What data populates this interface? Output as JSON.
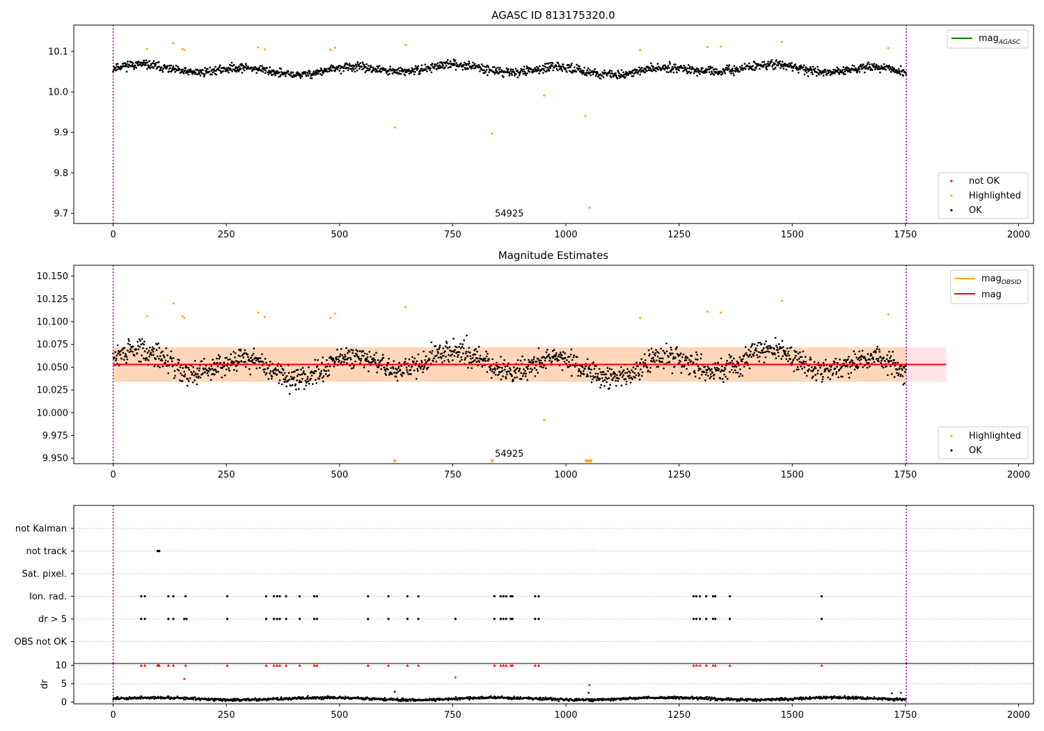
{
  "chart_data": [
    {
      "type": "scatter",
      "title": "AGASC ID 813175320.0",
      "xlim": [
        -87,
        2033
      ],
      "ylim": [
        9.675,
        10.165
      ],
      "xticks": [
        0,
        250,
        500,
        750,
        1000,
        1250,
        1500,
        1750,
        2000
      ],
      "yticks": [
        9.7,
        9.8,
        9.9,
        10.0,
        10.1
      ],
      "ytick_labels": [
        "9.7",
        "9.8",
        "9.9",
        "10.0",
        "10.1"
      ],
      "vlines": [
        0,
        1752
      ],
      "obs_label": {
        "text": "54925",
        "x": 875,
        "y": 9.675
      },
      "legend_lines": [
        {
          "name": "magAGASC",
          "main": "mag",
          "sub": "AGASC",
          "color": "#008000"
        }
      ],
      "legend_points": [
        {
          "name": "not OK",
          "color": "#ff0000"
        },
        {
          "name": "Highlighted",
          "color": "#ffa500"
        },
        {
          "name": "OK",
          "color": "#000000"
        }
      ],
      "ok_series": {
        "n": 1752,
        "base": 10.055,
        "noise": 0.017,
        "wave_amp": 0.008,
        "seed": 11
      },
      "highlighted": [
        [
          75,
          10.106
        ],
        [
          133,
          10.12
        ],
        [
          153,
          10.106
        ],
        [
          157,
          10.104
        ],
        [
          320,
          10.11
        ],
        [
          335,
          10.105
        ],
        [
          480,
          10.104
        ],
        [
          490,
          10.109
        ],
        [
          622,
          9.912
        ],
        [
          646,
          10.116
        ],
        [
          837,
          9.897
        ],
        [
          952,
          9.991
        ],
        [
          1043,
          9.94
        ],
        [
          1052,
          9.714
        ],
        [
          1164,
          10.104
        ],
        [
          1313,
          10.111
        ],
        [
          1342,
          10.112
        ],
        [
          1477,
          10.123
        ],
        [
          1712,
          10.108
        ]
      ]
    },
    {
      "type": "scatter",
      "title": "Magnitude Estimates",
      "xlim": [
        -87,
        2033
      ],
      "ylim": [
        9.944,
        10.162
      ],
      "xticks": [
        0,
        250,
        500,
        750,
        1000,
        1250,
        1500,
        1750,
        2000
      ],
      "yticks": [
        9.95,
        9.975,
        10.0,
        10.025,
        10.05,
        10.075,
        10.1,
        10.125,
        10.15
      ],
      "ytick_labels": [
        "9.950",
        "9.975",
        "10.000",
        "10.025",
        "10.050",
        "10.075",
        "10.100",
        "10.125",
        "10.150"
      ],
      "vlines": [
        0,
        1752
      ],
      "obs_label": {
        "text": "54925",
        "x": 875,
        "y": 9.944
      },
      "mean": 10.053,
      "band": {
        "x0": 0,
        "x1": 1840,
        "lo": 10.034,
        "hi": 10.072
      },
      "band_ok": {
        "x0": 0,
        "x1": 1752
      },
      "legend_lines": [
        {
          "name": "magOBSID",
          "main": "mag",
          "sub": "OBSID",
          "color": "#ffa500"
        },
        {
          "name": "mag",
          "main": "mag",
          "sub": "",
          "color": "#ff0000"
        }
      ],
      "legend_points": [
        {
          "name": "Highlighted",
          "color": "#ffa500"
        },
        {
          "name": "OK",
          "color": "#000000"
        }
      ],
      "ok_series": {
        "n": 1752,
        "base": 10.053,
        "noise": 0.021,
        "wave_amp": 0.01,
        "seed": 29
      },
      "highlighted": [
        [
          75,
          10.106
        ],
        [
          133,
          10.12
        ],
        [
          153,
          10.106
        ],
        [
          157,
          10.104
        ],
        [
          320,
          10.11
        ],
        [
          335,
          10.105
        ],
        [
          480,
          10.104
        ],
        [
          490,
          10.109
        ],
        [
          646,
          10.116
        ],
        [
          952,
          9.992
        ],
        [
          1164,
          10.104
        ],
        [
          1313,
          10.111
        ],
        [
          1342,
          10.11
        ],
        [
          1477,
          10.123
        ],
        [
          1712,
          10.108
        ]
      ],
      "off_scale_markers": [
        622,
        837,
        1045,
        1050,
        1055
      ]
    },
    {
      "type": "scatter",
      "title": "",
      "xlim": [
        -87,
        2033
      ],
      "xticks": [
        0,
        250,
        500,
        750,
        1000,
        1250,
        1500,
        1750,
        2000
      ],
      "vlines": [
        0,
        1752
      ],
      "flag_rows": [
        "not Kalman",
        "not track",
        "Sat. pixel.",
        "Ion. rad.",
        "dr > 5",
        "OBS not OK"
      ],
      "flags": {
        "not track": [
          98,
          99,
          100,
          101,
          102
        ],
        "Ion. rad.": [
          62,
          70,
          122,
          133,
          160,
          252,
          338,
          355,
          362,
          368,
          382,
          412,
          444,
          450,
          563,
          608,
          650,
          674,
          842,
          856,
          862,
          868,
          878,
          882,
          932,
          940,
          1282,
          1288,
          1296,
          1310,
          1325,
          1330,
          1362,
          1565
        ],
        "dr > 5": [
          62,
          70,
          122,
          133,
          157,
          162,
          252,
          338,
          355,
          362,
          368,
          382,
          412,
          444,
          450,
          563,
          608,
          650,
          674,
          756,
          842,
          856,
          862,
          868,
          878,
          882,
          932,
          940,
          1282,
          1288,
          1296,
          1310,
          1325,
          1330,
          1362,
          1565
        ],
        "OBS not OK": []
      },
      "dr": {
        "ylabel": "dr",
        "ylim": [
          -0.5,
          10.5
        ],
        "yticks": [
          0,
          5,
          10
        ],
        "ytick_labels": [
          "0",
          "5",
          "10"
        ],
        "clip_value": 10,
        "series": {
          "n": 1752,
          "base": 0.9,
          "noise": 0.35,
          "seed": 47
        },
        "clipped_x": [
          62,
          70,
          98,
          100,
          102,
          122,
          133,
          160,
          252,
          338,
          355,
          362,
          368,
          382,
          412,
          444,
          450,
          563,
          608,
          650,
          674,
          842,
          856,
          862,
          868,
          878,
          882,
          932,
          940,
          1282,
          1288,
          1296,
          1310,
          1325,
          1330,
          1362,
          1565
        ],
        "red_points": [
          [
            157,
            6.3
          ],
          [
            756,
            6.7
          ],
          [
            1052,
            4.6
          ]
        ],
        "extra_points": [
          [
            622,
            2.8
          ],
          [
            1050,
            2.5
          ],
          [
            1720,
            2.4
          ],
          [
            1740,
            2.5
          ]
        ]
      }
    }
  ]
}
